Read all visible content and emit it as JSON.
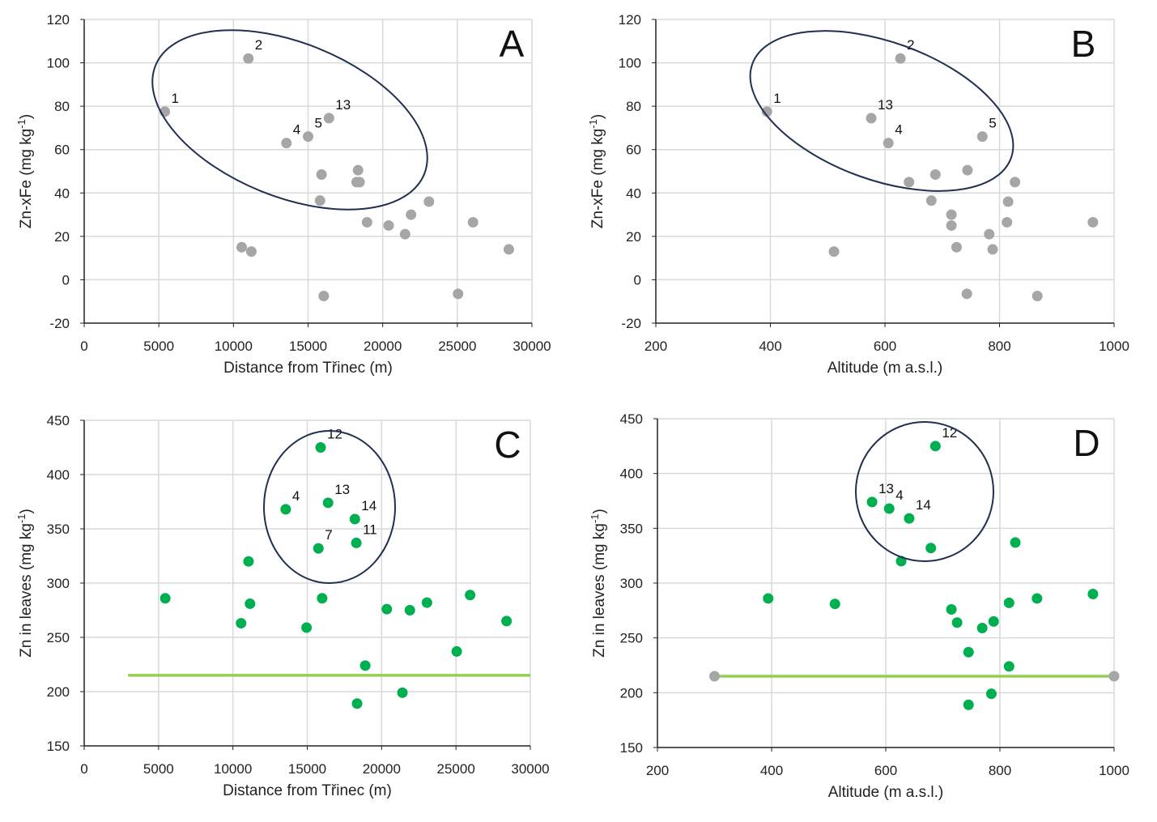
{
  "chart_data": [
    {
      "panel": "A",
      "type": "scatter",
      "xlabel": "Distance from Třinec (m)",
      "ylabel": "Zn-xFe (mg kg-1)",
      "xlim": [
        0,
        30000
      ],
      "ylim": [
        -20,
        120
      ],
      "xticks": [
        0,
        5000,
        10000,
        15000,
        20000,
        25000,
        30000
      ],
      "yticks": [
        -20,
        0,
        20,
        40,
        60,
        80,
        100,
        120
      ],
      "grid": true,
      "point_color": "#a6a6a6",
      "points": [
        {
          "x": 5400,
          "y": 77.5,
          "label": "1"
        },
        {
          "x": 11000,
          "y": 102,
          "label": "2"
        },
        {
          "x": 13550,
          "y": 63,
          "label": "4"
        },
        {
          "x": 15000,
          "y": 66,
          "label": "5"
        },
        {
          "x": 16400,
          "y": 74.5,
          "label": "13"
        },
        {
          "x": 15900,
          "y": 48.5
        },
        {
          "x": 15800,
          "y": 36.5
        },
        {
          "x": 18350,
          "y": 50.5
        },
        {
          "x": 18250,
          "y": 45
        },
        {
          "x": 18450,
          "y": 45
        },
        {
          "x": 18950,
          "y": 26.5
        },
        {
          "x": 20400,
          "y": 25
        },
        {
          "x": 21900,
          "y": 30
        },
        {
          "x": 21500,
          "y": 21
        },
        {
          "x": 23100,
          "y": 36
        },
        {
          "x": 26050,
          "y": 26.5
        },
        {
          "x": 28450,
          "y": 14
        },
        {
          "x": 10550,
          "y": 15
        },
        {
          "x": 11200,
          "y": 13
        },
        {
          "x": 16050,
          "y": -7.5
        },
        {
          "x": 25050,
          "y": -6.5
        }
      ]
    },
    {
      "panel": "B",
      "type": "scatter",
      "xlabel": "Altitude (m a.s.l.)",
      "ylabel": "Zn-xFe (mg kg-1)",
      "xlim": [
        200,
        1000
      ],
      "ylim": [
        -20,
        120
      ],
      "xticks": [
        200,
        400,
        600,
        800,
        1000
      ],
      "yticks": [
        -20,
        0,
        20,
        40,
        60,
        80,
        100,
        120
      ],
      "grid": true,
      "point_color": "#a6a6a6",
      "points": [
        {
          "x": 394,
          "y": 77.5,
          "label": "1"
        },
        {
          "x": 627,
          "y": 102,
          "label": "2"
        },
        {
          "x": 576,
          "y": 74.5,
          "label": "13"
        },
        {
          "x": 606,
          "y": 63,
          "label": "4"
        },
        {
          "x": 770,
          "y": 66,
          "label": "5"
        },
        {
          "x": 642,
          "y": 45
        },
        {
          "x": 688,
          "y": 48.5
        },
        {
          "x": 744,
          "y": 50.5
        },
        {
          "x": 827,
          "y": 45
        },
        {
          "x": 681,
          "y": 36.5
        },
        {
          "x": 716,
          "y": 30
        },
        {
          "x": 716,
          "y": 25
        },
        {
          "x": 725,
          "y": 15
        },
        {
          "x": 815,
          "y": 36
        },
        {
          "x": 813,
          "y": 26.5
        },
        {
          "x": 782,
          "y": 21
        },
        {
          "x": 788,
          "y": 14
        },
        {
          "x": 963,
          "y": 26.5
        },
        {
          "x": 511,
          "y": 13
        },
        {
          "x": 743,
          "y": -6.5
        },
        {
          "x": 866,
          "y": -7.5
        }
      ]
    },
    {
      "panel": "C",
      "type": "scatter",
      "xlabel": "Distance from Třinec (m)",
      "ylabel": "Zn in leaves (mg kg-1)",
      "xlim": [
        0,
        30000
      ],
      "ylim": [
        150,
        450
      ],
      "xticks": [
        0,
        5000,
        10000,
        15000,
        20000,
        25000,
        30000
      ],
      "yticks": [
        150,
        200,
        250,
        300,
        350,
        400,
        450
      ],
      "grid": true,
      "point_color": "#00b050",
      "reference_line": {
        "y": 215,
        "x_from": 2950,
        "x_to": 30000,
        "color": "#92d050"
      },
      "points": [
        {
          "x": 5450,
          "y": 286
        },
        {
          "x": 11050,
          "y": 320
        },
        {
          "x": 11150,
          "y": 281
        },
        {
          "x": 10550,
          "y": 263
        },
        {
          "x": 13550,
          "y": 368,
          "label": "4"
        },
        {
          "x": 15900,
          "y": 425,
          "label": "12"
        },
        {
          "x": 16400,
          "y": 374,
          "label": "13"
        },
        {
          "x": 18200,
          "y": 359,
          "label": "14"
        },
        {
          "x": 18300,
          "y": 337,
          "label": "11"
        },
        {
          "x": 15750,
          "y": 332,
          "label": "7"
        },
        {
          "x": 14950,
          "y": 259
        },
        {
          "x": 16000,
          "y": 286
        },
        {
          "x": 18900,
          "y": 224
        },
        {
          "x": 18350,
          "y": 189
        },
        {
          "x": 21400,
          "y": 199
        },
        {
          "x": 20350,
          "y": 276
        },
        {
          "x": 21900,
          "y": 275
        },
        {
          "x": 23050,
          "y": 282
        },
        {
          "x": 25050,
          "y": 237
        },
        {
          "x": 25950,
          "y": 289
        },
        {
          "x": 28400,
          "y": 265
        }
      ]
    },
    {
      "panel": "D",
      "type": "scatter",
      "xlabel": "Altitude (m a.s.l.)",
      "ylabel": "Zn in leaves (mg kg-1)",
      "xlim": [
        200,
        1000
      ],
      "ylim": [
        150,
        450
      ],
      "xticks": [
        200,
        400,
        600,
        800,
        1000
      ],
      "yticks": [
        150,
        200,
        250,
        300,
        350,
        400,
        450
      ],
      "grid": true,
      "point_color": "#00b050",
      "reference_line": {
        "y": 215,
        "x_from": 300,
        "x_to": 1000,
        "color": "#92d050",
        "endpoint_color": "#a6a6a6"
      },
      "points": [
        {
          "x": 687,
          "y": 425,
          "label": "12"
        },
        {
          "x": 576,
          "y": 374,
          "label": "13"
        },
        {
          "x": 606,
          "y": 368,
          "label": "4"
        },
        {
          "x": 641,
          "y": 359,
          "label": "14"
        },
        {
          "x": 679,
          "y": 332
        },
        {
          "x": 627,
          "y": 320
        },
        {
          "x": 827,
          "y": 337
        },
        {
          "x": 394,
          "y": 286
        },
        {
          "x": 511,
          "y": 281
        },
        {
          "x": 715,
          "y": 276
        },
        {
          "x": 725,
          "y": 264
        },
        {
          "x": 769,
          "y": 259
        },
        {
          "x": 789,
          "y": 265
        },
        {
          "x": 816,
          "y": 282
        },
        {
          "x": 865,
          "y": 286
        },
        {
          "x": 963,
          "y": 290
        },
        {
          "x": 745,
          "y": 237
        },
        {
          "x": 816,
          "y": 224
        },
        {
          "x": 785,
          "y": 199
        },
        {
          "x": 745,
          "y": 189
        }
      ]
    }
  ]
}
